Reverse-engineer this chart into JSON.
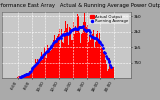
{
  "title": "Solar PV/Inverter Performance East Array   Actual & Running Average Power Output",
  "bg_color": "#aaaaaa",
  "plot_bg": "#c8c8c8",
  "bar_color": "#ff0000",
  "line_color": "#0000ff",
  "grid_color": "#ffffff",
  "n_bars": 144,
  "peak_index": 84,
  "sigma": 30,
  "ylim_max": 3200,
  "y_ticks": [
    750,
    1500,
    2250,
    3000
  ],
  "y_tick_labels": [
    "750",
    "1k5",
    "2k2",
    "3k0"
  ],
  "x_tick_labels": [
    "6:00",
    "8:00",
    "10:00",
    "12:00",
    "14:00",
    "16:00",
    "18:00",
    "20:00"
  ],
  "legend_actual": "Actual Output",
  "legend_avg": "Running Average",
  "title_fontsize": 3.8,
  "tick_fontsize": 3.0,
  "legend_fontsize": 2.8
}
